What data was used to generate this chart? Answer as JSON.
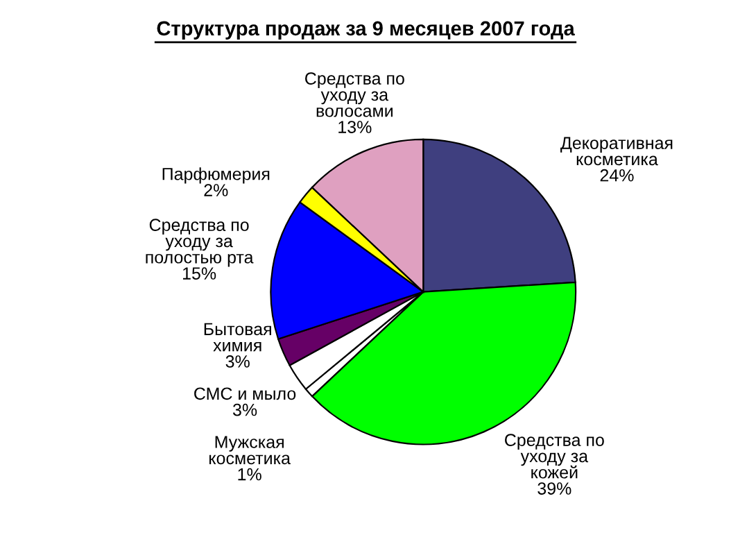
{
  "chart_data": {
    "type": "pie",
    "title": "Структура продаж за 9 месяцев 2007 года",
    "categories": [
      "Декоративная\nкосметика",
      "Средства по\nуходу за\nкожей",
      "Мужская\nкосметика",
      "СМС и мыло",
      "Бытовая\nхимия",
      "Средства по\nуходу за\nполостью рта",
      "Парфюмерия",
      "Средства по\nуходу за\nволосами"
    ],
    "values": [
      24,
      39,
      1,
      3,
      3,
      15,
      2,
      13
    ],
    "value_labels": [
      "24%",
      "39%",
      "1%",
      "3%",
      "3%",
      "15%",
      "2%",
      "13%"
    ],
    "colors": [
      "#3f3f7f",
      "#00ff00",
      "#ffffff",
      "#ffffff",
      "#660066",
      "#0000ff",
      "#ffff00",
      "#dfa0c0"
    ],
    "legend": false
  }
}
